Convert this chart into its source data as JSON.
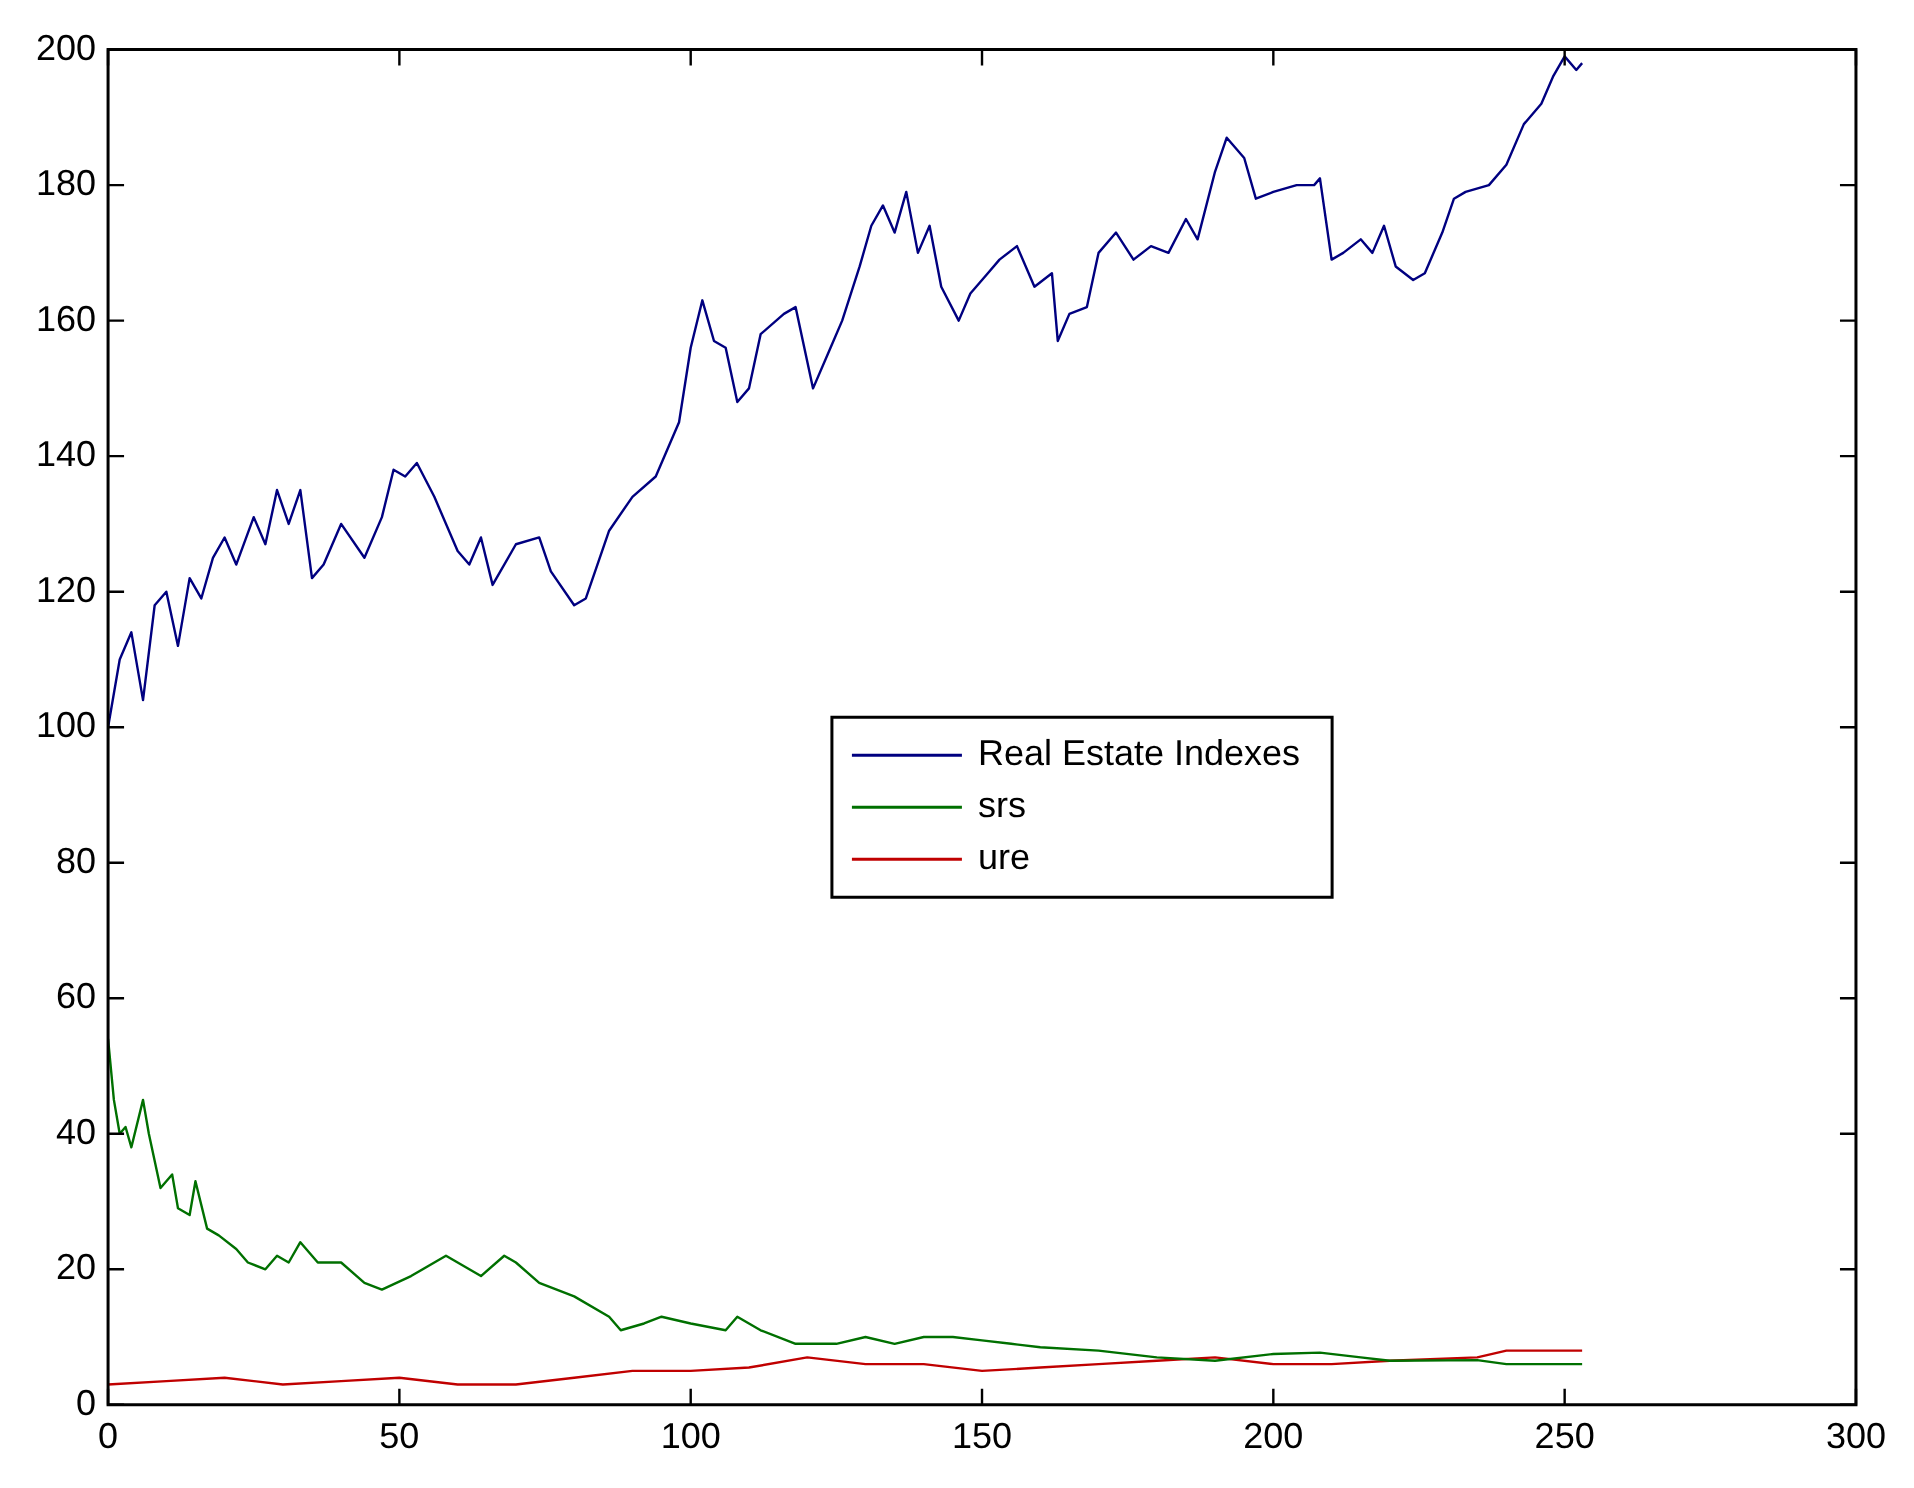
{
  "chart_data": {
    "type": "line",
    "xlim": [
      0,
      300
    ],
    "xticks": [
      0,
      50,
      100,
      150,
      200,
      250,
      300
    ],
    "ylim": [
      0,
      200
    ],
    "yticks": [
      0,
      20,
      40,
      60,
      80,
      100,
      120,
      140,
      160,
      180,
      200
    ],
    "grid": false,
    "legend": "center",
    "marker": "none",
    "line_style": "solid",
    "series": [
      {
        "name": "Real Estate Indexes",
        "color": "#000080",
        "x": [
          0,
          2,
          4,
          6,
          8,
          10,
          12,
          14,
          16,
          18,
          20,
          22,
          25,
          27,
          29,
          31,
          33,
          35,
          37,
          40,
          44,
          47,
          49,
          51,
          53,
          56,
          60,
          62,
          64,
          66,
          70,
          74,
          76,
          80,
          82,
          86,
          90,
          94,
          98,
          100,
          102,
          104,
          106,
          108,
          110,
          112,
          116,
          118,
          121,
          124,
          126,
          129,
          131,
          133,
          135,
          137,
          139,
          141,
          143,
          146,
          148,
          151,
          153,
          156,
          159,
          162,
          163,
          165,
          168,
          170,
          173,
          176,
          179,
          182,
          185,
          187,
          190,
          192,
          195,
          197,
          200,
          204,
          207,
          208,
          210,
          212,
          215,
          217,
          219,
          221,
          224,
          226,
          229,
          231,
          233,
          237,
          240,
          243,
          246,
          248,
          250,
          252,
          253
        ],
        "values": [
          100,
          110,
          114,
          104,
          118,
          120,
          112,
          122,
          119,
          125,
          128,
          124,
          131,
          127,
          135,
          130,
          135,
          122,
          124,
          130,
          125,
          131,
          138,
          137,
          139,
          134,
          126,
          124,
          128,
          121,
          127,
          128,
          123,
          118,
          119,
          129,
          134,
          137,
          145,
          156,
          163,
          157,
          156,
          148,
          150,
          158,
          161,
          162,
          150,
          156,
          160,
          168,
          174,
          177,
          173,
          179,
          170,
          174,
          165,
          160,
          164,
          167,
          169,
          171,
          165,
          167,
          157,
          161,
          162,
          170,
          173,
          169,
          171,
          170,
          175,
          172,
          182,
          187,
          184,
          178,
          179,
          180,
          180,
          181,
          169,
          170,
          172,
          170,
          174,
          168,
          166,
          167,
          173,
          178,
          179,
          180,
          183,
          189,
          192,
          196,
          199,
          197,
          198
        ]
      },
      {
        "name": "srs",
        "color": "#007000",
        "x": [
          0,
          1,
          2,
          3,
          4,
          6,
          7,
          9,
          11,
          12,
          14,
          15,
          17,
          19,
          22,
          24,
          27,
          29,
          31,
          33,
          36,
          40,
          44,
          47,
          52,
          56,
          58,
          62,
          64,
          68,
          70,
          74,
          80,
          86,
          88,
          92,
          95,
          100,
          106,
          108,
          112,
          118,
          125,
          130,
          135,
          140,
          145,
          150,
          155,
          160,
          170,
          180,
          190,
          200,
          208,
          215,
          220,
          235,
          240,
          253
        ],
        "values": [
          54,
          45,
          40,
          41,
          38,
          45,
          40,
          32,
          34,
          29,
          28,
          33,
          26,
          25,
          23,
          21,
          20,
          22,
          21,
          24,
          21,
          21,
          18,
          17,
          19,
          21,
          22,
          20,
          19,
          22,
          21,
          18,
          16,
          13,
          11,
          12,
          13,
          12,
          11,
          13,
          11,
          9,
          9,
          10,
          9,
          10,
          10,
          9.5,
          9,
          8.5,
          8,
          7,
          6.5,
          7.5,
          7.7,
          7,
          6.5,
          6.6,
          6,
          6
        ]
      },
      {
        "name": "ure",
        "color": "#c00000",
        "x": [
          0,
          10,
          20,
          30,
          40,
          50,
          60,
          70,
          80,
          90,
          100,
          110,
          120,
          130,
          140,
          150,
          160,
          170,
          180,
          190,
          200,
          210,
          220,
          235,
          240,
          253
        ],
        "values": [
          3,
          3.5,
          4,
          3,
          3.5,
          4,
          3,
          3,
          4,
          5,
          5,
          5.5,
          7,
          6,
          6,
          5,
          5.5,
          6,
          6.5,
          7,
          6,
          6,
          6.5,
          7,
          8,
          8
        ]
      }
    ]
  }
}
